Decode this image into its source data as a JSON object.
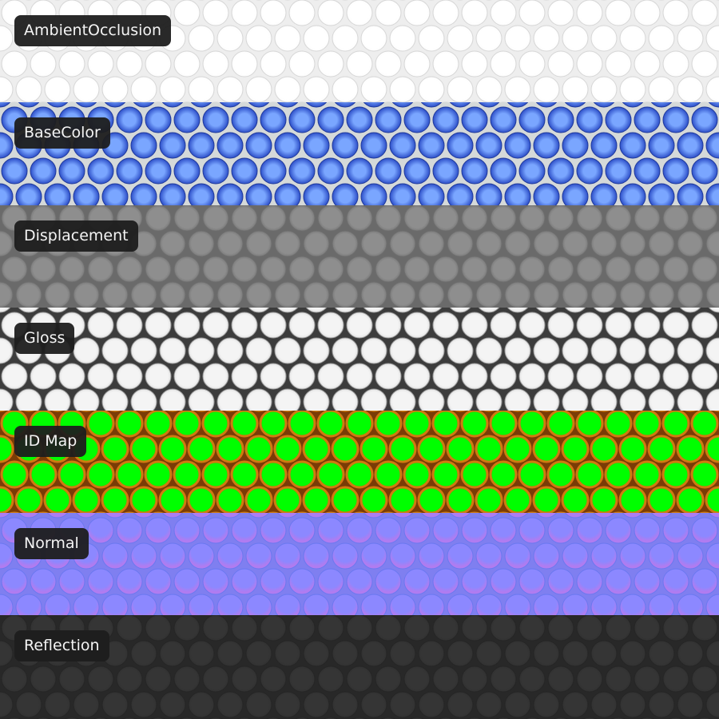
{
  "maps": [
    {
      "label": "AmbientOcclusion",
      "bg": "#eeeeee",
      "fill_inner": "#ffffff",
      "fill_outer": "#fbfbfb",
      "stroke": "#d6d6d6"
    },
    {
      "label": "BaseColor",
      "bg": "#d5d9d9",
      "fill_inner": "#7aa6ff",
      "fill_outer": "#1c3cbc",
      "stroke": "#203a9a"
    },
    {
      "label": "Displacement",
      "bg": "#6a6a6a",
      "fill_inner": "#8e8e8e",
      "fill_outer": "#747474",
      "stroke": "#6e6e6e"
    },
    {
      "label": "Gloss",
      "bg": "#3c3c3c",
      "fill_inner": "#f4f4f4",
      "fill_outer": "#dedede",
      "stroke": "#9a9a9a"
    },
    {
      "label": "ID Map",
      "bg": "#7a3c06",
      "fill_inner": "#00ff00",
      "fill_outer": "#00f000",
      "stroke": "#d07a10"
    },
    {
      "label": "Normal",
      "bg": "#7f7ff0",
      "fill_inner": "#8c88ff",
      "fill_outer": "#b07cf0",
      "stroke": "#6a78f0"
    },
    {
      "label": "Reflection",
      "bg": "#282828",
      "fill_inner": "#353535",
      "fill_outer": "#303030",
      "stroke": "#262626"
    }
  ]
}
